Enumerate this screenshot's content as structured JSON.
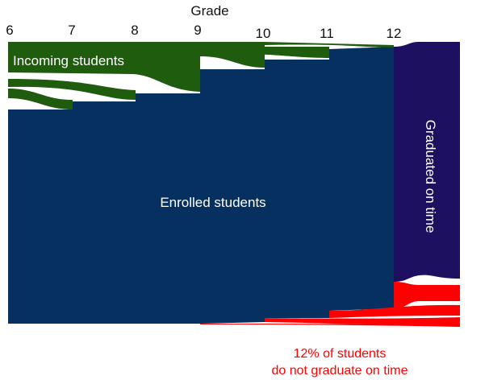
{
  "axis": {
    "title": "Grade",
    "grades": [
      "6",
      "7",
      "8",
      "9",
      "10",
      "11",
      "12"
    ]
  },
  "labels": {
    "incoming": "Incoming students",
    "enrolled": "Enrolled students",
    "graduated": "Graduated on time",
    "note_line1": "12% of students",
    "note_line2": "do not graduate on time"
  },
  "colors": {
    "incoming": "#1f5c0d",
    "enrolled": "#05305f",
    "graduated": "#1e1060",
    "dropout": "#ff0000"
  }
}
